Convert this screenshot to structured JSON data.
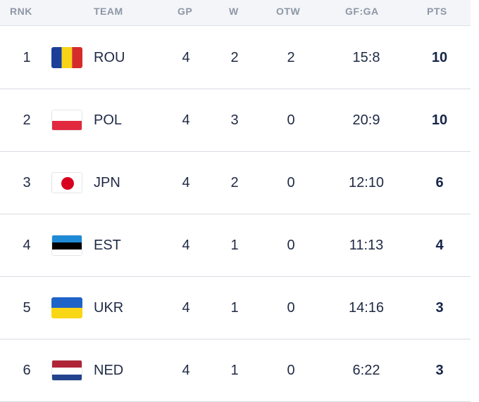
{
  "headers": {
    "rnk": "RNK",
    "team": "TEAM",
    "gp": "GP",
    "w": "W",
    "otw": "OTW",
    "gfga": "GF:GA",
    "pts": "PTS"
  },
  "rows": [
    {
      "rank": "1",
      "team": "ROU",
      "flag_icon": "romania-flag-icon",
      "gp": "4",
      "w": "2",
      "otw": "2",
      "gfga": "15:8",
      "pts": "10"
    },
    {
      "rank": "2",
      "team": "POL",
      "flag_icon": "poland-flag-icon",
      "gp": "4",
      "w": "3",
      "otw": "0",
      "gfga": "20:9",
      "pts": "10"
    },
    {
      "rank": "3",
      "team": "JPN",
      "flag_icon": "japan-flag-icon",
      "gp": "4",
      "w": "2",
      "otw": "0",
      "gfga": "12:10",
      "pts": "6"
    },
    {
      "rank": "4",
      "team": "EST",
      "flag_icon": "estonia-flag-icon",
      "gp": "4",
      "w": "1",
      "otw": "0",
      "gfga": "11:13",
      "pts": "4"
    },
    {
      "rank": "5",
      "team": "UKR",
      "flag_icon": "ukraine-flag-icon",
      "gp": "4",
      "w": "1",
      "otw": "0",
      "gfga": "14:16",
      "pts": "3"
    },
    {
      "rank": "6",
      "team": "NED",
      "flag_icon": "netherlands-flag-icon",
      "gp": "4",
      "w": "1",
      "otw": "0",
      "gfga": "6:22",
      "pts": "3"
    }
  ],
  "colors": {
    "text": "#1f2a44",
    "header_text": "#8e96a6",
    "header_bg": "#f3f5f8",
    "divider": "#d7dbe1",
    "points": "#16254a"
  }
}
